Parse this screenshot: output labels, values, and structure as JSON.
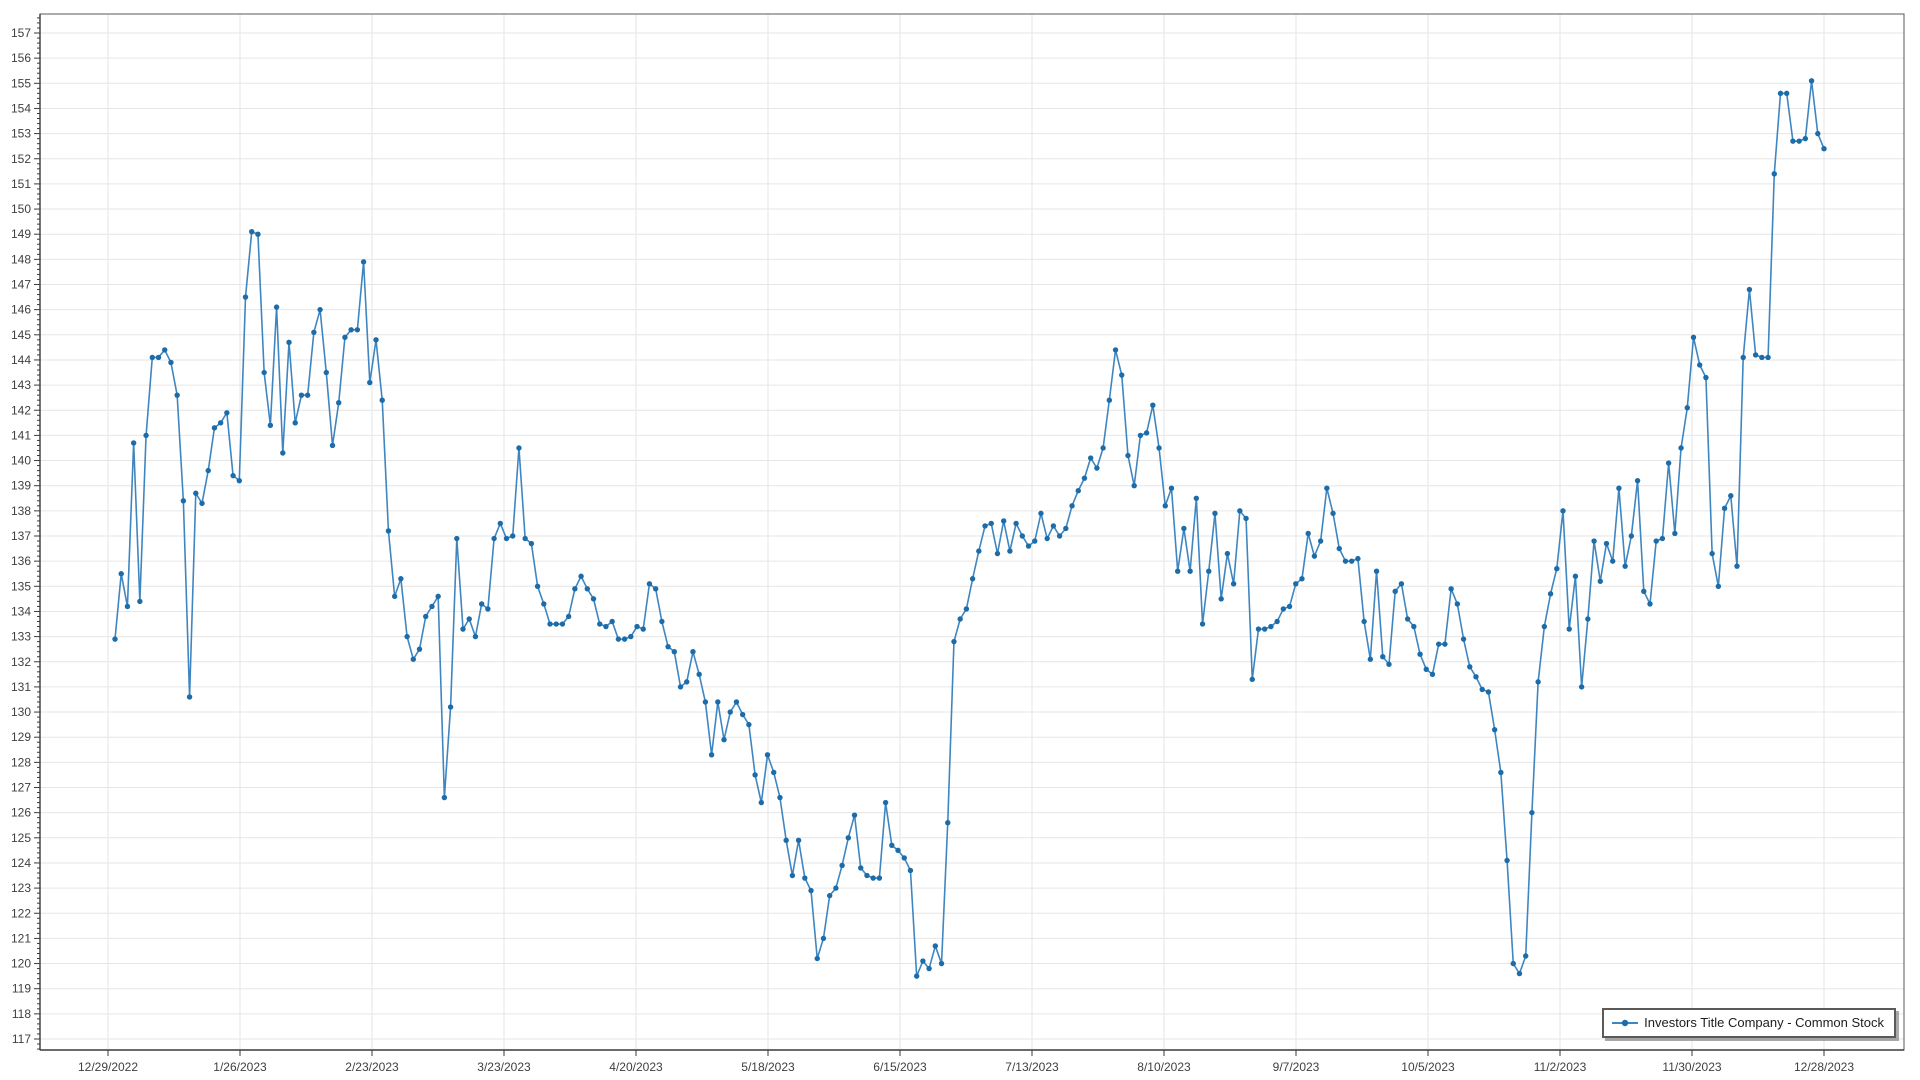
{
  "chart_data": {
    "type": "line",
    "title": "",
    "series": [
      {
        "name": "Investors Title Company - Common Stock",
        "values": [
          132.9,
          135.5,
          134.2,
          140.7,
          134.4,
          141.0,
          144.1,
          144.1,
          144.4,
          143.9,
          142.6,
          138.4,
          130.6,
          138.7,
          138.3,
          139.6,
          141.3,
          141.5,
          141.9,
          139.4,
          139.2,
          146.5,
          149.1,
          149.0,
          143.5,
          141.4,
          146.1,
          140.3,
          144.7,
          141.5,
          142.6,
          142.6,
          145.1,
          146.0,
          143.5,
          140.6,
          142.3,
          144.9,
          145.2,
          145.2,
          147.9,
          143.1,
          144.8,
          142.4,
          137.2,
          134.6,
          135.3,
          133.0,
          132.1,
          132.5,
          133.8,
          134.2,
          134.6,
          126.6,
          130.2,
          136.9,
          133.3,
          133.7,
          133.0,
          134.3,
          134.1,
          136.9,
          137.5,
          136.9,
          137.0,
          140.5,
          136.9,
          136.7,
          135.0,
          134.3,
          133.5,
          133.5,
          133.5,
          133.8,
          134.9,
          135.4,
          134.9,
          134.5,
          133.5,
          133.4,
          133.6,
          132.9,
          132.9,
          133.0,
          133.4,
          133.3,
          135.1,
          134.9,
          133.6,
          132.6,
          132.4,
          131.0,
          131.2,
          132.4,
          131.5,
          130.4,
          128.3,
          130.4,
          128.9,
          130.0,
          130.4,
          129.9,
          129.5,
          127.5,
          126.4,
          128.3,
          127.6,
          126.6,
          124.9,
          123.5,
          124.9,
          123.4,
          122.9,
          120.2,
          121.0,
          122.7,
          123.0,
          123.9,
          125.0,
          125.9,
          123.8,
          123.5,
          123.4,
          123.4,
          126.4,
          124.7,
          124.5,
          124.2,
          123.7,
          119.5,
          120.1,
          119.8,
          120.7,
          120.0,
          125.6,
          132.8,
          133.7,
          134.1,
          135.3,
          136.4,
          137.4,
          137.5,
          136.3,
          137.6,
          136.4,
          137.5,
          137.0,
          136.6,
          136.8,
          137.9,
          136.9,
          137.4,
          137.0,
          137.3,
          138.2,
          138.8,
          139.3,
          140.1,
          139.7,
          140.5,
          142.4,
          144.4,
          143.4,
          140.2,
          139.0,
          141.0,
          141.1,
          142.2,
          140.5,
          138.2,
          138.9,
          135.6,
          137.3,
          135.6,
          138.5,
          133.5,
          135.6,
          137.9,
          134.5,
          136.3,
          135.1,
          138.0,
          137.7,
          131.3,
          133.3,
          133.3,
          133.4,
          133.6,
          134.1,
          134.2,
          135.1,
          135.3,
          137.1,
          136.2,
          136.8,
          138.9,
          137.9,
          136.5,
          136.0,
          136.0,
          136.1,
          133.6,
          132.1,
          135.6,
          132.2,
          131.9,
          134.8,
          135.1,
          133.7,
          133.4,
          132.3,
          131.7,
          131.5,
          132.7,
          132.7,
          134.9,
          134.3,
          132.9,
          131.8,
          131.4,
          130.9,
          130.8,
          129.3,
          127.6,
          124.1,
          120.0,
          119.6,
          120.3,
          126.0,
          131.2,
          133.4,
          134.7,
          135.7,
          138.0,
          133.3,
          135.4,
          131.0,
          133.7,
          136.8,
          135.2,
          136.7,
          136.0,
          138.9,
          135.8,
          137.0,
          139.2,
          134.8,
          134.3,
          136.8,
          136.9,
          139.9,
          137.1,
          140.5,
          142.1,
          144.9,
          143.8,
          143.3,
          136.3,
          135.0,
          138.1,
          138.6,
          135.8,
          144.1,
          146.8,
          144.2,
          144.1,
          144.1,
          151.4,
          154.6,
          154.6,
          152.7,
          152.7,
          152.8,
          155.1,
          153.0,
          152.4
        ]
      }
    ],
    "x_tick_labels": [
      "12/29/2022",
      "1/26/2023",
      "2/23/2023",
      "3/23/2023",
      "4/20/2023",
      "5/18/2023",
      "6/15/2023",
      "7/13/2023",
      "8/10/2023",
      "9/7/2023",
      "10/5/2023",
      "11/2/2023",
      "11/30/2023",
      "12/28/2023"
    ],
    "y_axis": {
      "min": 117,
      "max": 157,
      "major_step": 1,
      "minor_step": 0.2,
      "tick_labels": [
        "117",
        "118",
        "119",
        "120",
        "121",
        "122",
        "123",
        "124",
        "125",
        "126",
        "127",
        "128",
        "129",
        "130",
        "131",
        "132",
        "133",
        "134",
        "135",
        "136",
        "137",
        "138",
        "139",
        "140",
        "141",
        "142",
        "143",
        "144",
        "145",
        "146",
        "147",
        "148",
        "149",
        "150",
        "151",
        "152",
        "153",
        "154",
        "155",
        "156",
        "157"
      ]
    },
    "grid": true,
    "legend_position": "bottom-right",
    "colors": {
      "line": "#3f86c1",
      "marker": "#1c6ca9",
      "grid": "#e6e6e6",
      "axis": "#3a3a3a",
      "plot_border": "#5a5a5a",
      "label_text": "#3f3f3f"
    }
  },
  "legend": {
    "label": "Investors Title Company - Common Stock"
  }
}
